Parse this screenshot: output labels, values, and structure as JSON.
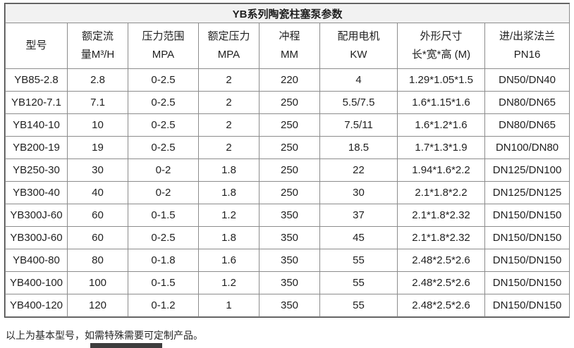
{
  "table": {
    "title": "YB系列陶瓷柱塞泵参数",
    "headers": [
      {
        "name": "model",
        "lines": [
          "型号"
        ]
      },
      {
        "name": "rated-flow",
        "lines": [
          "额定流",
          "量M³/H"
        ]
      },
      {
        "name": "pressure-range",
        "lines": [
          "压力范围",
          "MPA"
        ]
      },
      {
        "name": "rated-pressure",
        "lines": [
          "额定压力",
          "MPA"
        ]
      },
      {
        "name": "stroke",
        "lines": [
          "冲程",
          "MM"
        ]
      },
      {
        "name": "motor-power",
        "lines": [
          "配用电机",
          "KW"
        ]
      },
      {
        "name": "dimensions",
        "lines": [
          "外形尺寸",
          "长*宽*高 (M)"
        ]
      },
      {
        "name": "flange",
        "lines": [
          "进/出浆法兰",
          "PN16"
        ]
      }
    ],
    "rows": [
      [
        "YB85-2.8",
        "2.8",
        "0-2.5",
        "2",
        "220",
        "4",
        "1.29*1.05*1.5",
        "DN50/DN40"
      ],
      [
        "YB120-7.1",
        "7.1",
        "0-2.5",
        "2",
        "250",
        "5.5/7.5",
        "1.6*1.15*1.6",
        "DN80/DN65"
      ],
      [
        "YB140-10",
        "10",
        "0-2.5",
        "2",
        "250",
        "7.5/11",
        "1.6*1.2*1.6",
        "DN80/DN65"
      ],
      [
        "YB200-19",
        "19",
        "0-2.5",
        "2",
        "250",
        "18.5",
        "1.7*1.3*1.9",
        "DN100/DN80"
      ],
      [
        "YB250-30",
        "30",
        "0-2",
        "1.8",
        "250",
        "22",
        "1.94*1.6*2.2",
        "DN125/DN100"
      ],
      [
        "YB300-40",
        "40",
        "0-2",
        "1.8",
        "250",
        "30",
        "2.1*1.8*2.2",
        "DN125/DN125"
      ],
      [
        "YB300J-60",
        "60",
        "0-1.5",
        "1.2",
        "350",
        "37",
        "2.1*1.8*2.32",
        "DN150/DN150"
      ],
      [
        "YB300J-60",
        "60",
        "0-2.5",
        "1.8",
        "350",
        "45",
        "2.1*1.8*2.32",
        "DN150/DN150"
      ],
      [
        "YB400-80",
        "80",
        "0-1.8",
        "1.6",
        "350",
        "55",
        "2.48*2.5*2.6",
        "DN150/DN150"
      ],
      [
        "YB400-100",
        "100",
        "0-1.5",
        "1.2",
        "350",
        "55",
        "2.48*2.5*2.6",
        "DN150/DN150"
      ],
      [
        "YB400-120",
        "120",
        "0-1.2",
        "1",
        "350",
        "55",
        "2.48*2.5*2.6",
        "DN150/DN150"
      ]
    ]
  },
  "footer": {
    "note": "以上为基本型号，如需特殊需要可定制产品。"
  },
  "colors": {
    "title_background": "#f2f2f2",
    "inner_border": "#8c8c8c",
    "outer_border": "#404040",
    "text": "#1f1f1f"
  }
}
